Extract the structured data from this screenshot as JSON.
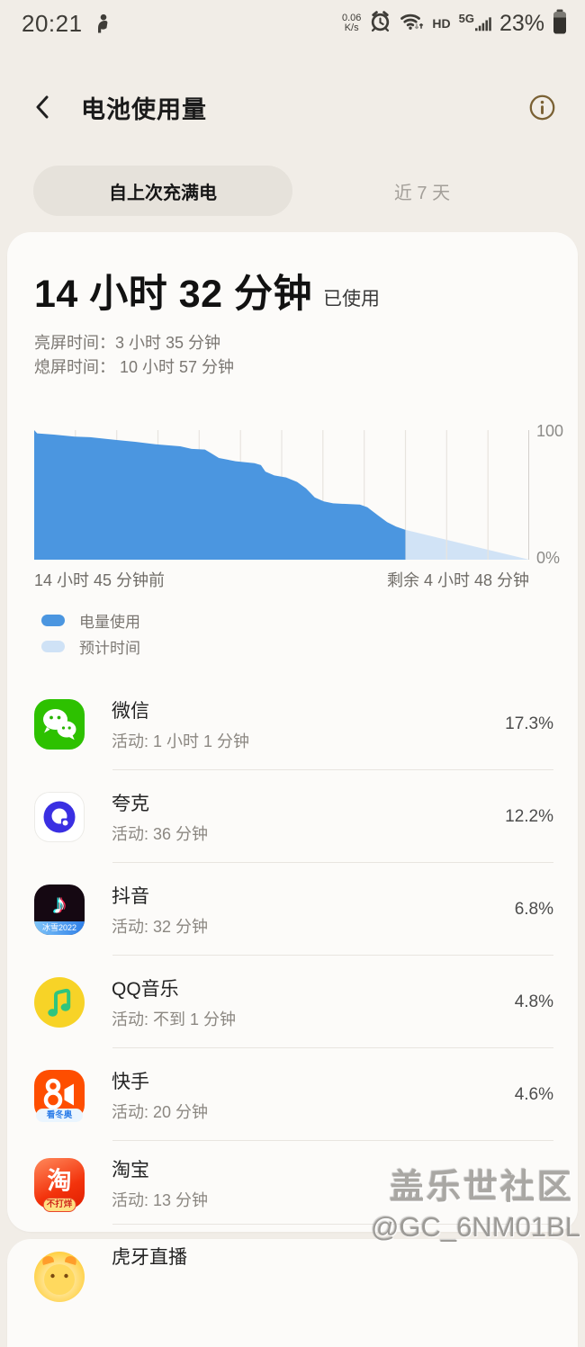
{
  "status_bar": {
    "time": "20:21",
    "net_speed_value": "0.06",
    "net_speed_unit": "K/s",
    "hd_label": "HD",
    "network_label": "5G",
    "battery_percent": "23%"
  },
  "header": {
    "title": "电池使用量"
  },
  "tabs": [
    {
      "label": "自上次充满电",
      "selected": true
    },
    {
      "label": "近 7 天",
      "selected": false
    }
  ],
  "summary": {
    "duration": "14 小时 32 分钟",
    "suffix": "已使用",
    "screen_on": "亮屏时间：3 小时 35 分钟",
    "screen_off": "熄屏时间： 10 小时 57 分钟"
  },
  "chart_data": {
    "type": "area",
    "title": "电池电量随时间变化",
    "ylim": [
      0,
      100
    ],
    "y_top_label": "100",
    "y_bottom_label": "0%",
    "x_left_label": "14 小时 45 分钟前",
    "x_right_label": "剩余 4 小时 48 分钟",
    "gridline_count": 13,
    "grid": true,
    "legend_position": "below-left",
    "series": [
      {
        "name": "电量使用",
        "color": "#4b96e0",
        "points": [
          [
            0,
            100
          ],
          [
            0.006,
            97.5
          ],
          [
            0.04,
            96.5
          ],
          [
            0.082,
            95
          ],
          [
            0.113,
            94.5
          ],
          [
            0.162,
            92.5
          ],
          [
            0.204,
            91
          ],
          [
            0.245,
            89
          ],
          [
            0.295,
            87.5
          ],
          [
            0.318,
            85.5
          ],
          [
            0.345,
            85
          ],
          [
            0.358,
            82
          ],
          [
            0.373,
            78.5
          ],
          [
            0.407,
            76
          ],
          [
            0.445,
            74.5
          ],
          [
            0.458,
            73
          ],
          [
            0.467,
            68
          ],
          [
            0.485,
            65
          ],
          [
            0.509,
            63.5
          ],
          [
            0.531,
            60
          ],
          [
            0.549,
            55
          ],
          [
            0.567,
            48
          ],
          [
            0.585,
            45
          ],
          [
            0.604,
            43.5
          ],
          [
            0.658,
            42.5
          ],
          [
            0.673,
            40.5
          ],
          [
            0.695,
            34
          ],
          [
            0.713,
            29
          ],
          [
            0.731,
            25.5
          ],
          [
            0.75,
            23
          ]
        ]
      },
      {
        "name": "预计时间",
        "color": "#cfe2f6",
        "points": [
          [
            0.75,
            23
          ],
          [
            1,
            0
          ]
        ]
      }
    ]
  },
  "legend": [
    {
      "label": "电量使用",
      "color": "#4b96e0"
    },
    {
      "label": "预计时间",
      "color": "#cfe2f6"
    }
  ],
  "apps": [
    {
      "id": "wechat",
      "name": "微信",
      "activity": "活动: 1 小时 1 分钟",
      "percent": "17.3%",
      "card": 1
    },
    {
      "id": "quark",
      "name": "夸克",
      "activity": "活动: 36 分钟",
      "percent": "12.2%",
      "card": 1
    },
    {
      "id": "douyin",
      "name": "抖音",
      "activity": "活动: 32 分钟",
      "percent": "6.8%",
      "badge": "冰雪2022",
      "card": 1
    },
    {
      "id": "qqmusic",
      "name": "QQ音乐",
      "activity": "活动: 不到 1 分钟",
      "percent": "4.8%",
      "card": 1
    },
    {
      "id": "kuaishou",
      "name": "快手",
      "activity": "活动: 20 分钟",
      "percent": "4.6%",
      "badge": "看冬奥",
      "card": 1
    },
    {
      "id": "taobao",
      "name": "淘宝",
      "activity": "活动: 13 分钟",
      "percent": "",
      "badge": "不打烊",
      "icon_char": "淘",
      "card": 1,
      "short": true
    },
    {
      "id": "huya",
      "name": "虎牙直播",
      "activity": "",
      "percent": "",
      "card": 2,
      "partial": true
    }
  ],
  "watermark": {
    "line1": "盖乐世社区",
    "line2": "@GC_6NM01BL"
  }
}
